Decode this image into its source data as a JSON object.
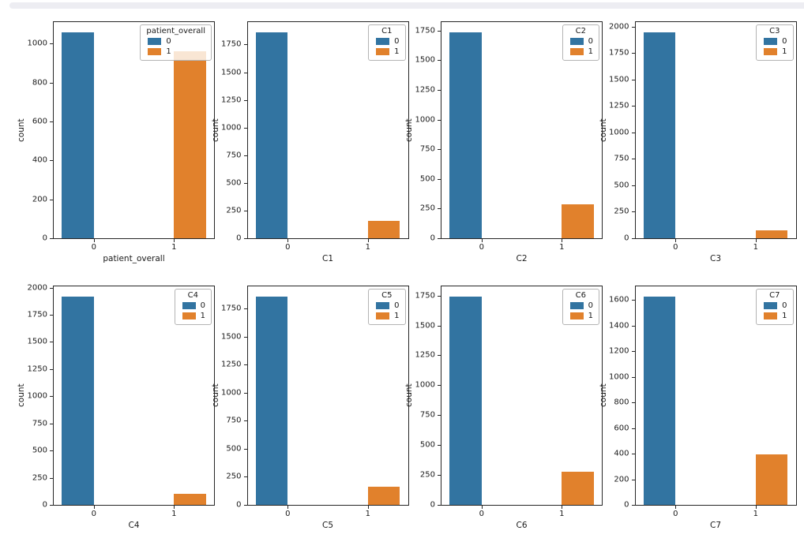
{
  "figure": {
    "kind": "notebook-plot-output",
    "rows": 2,
    "cols": 4,
    "background": "#ffffff"
  },
  "top_divider": {
    "color": "#ededf2"
  },
  "colors": {
    "bar_0": "#3274a1",
    "bar_1": "#e1812c",
    "spine": "#262626",
    "legend_border": "#b4b4b4",
    "text": "#1a1a1a"
  },
  "chart_data": [
    {
      "type": "bar",
      "title": "",
      "xlabel": "patient_overall",
      "ylabel": "count",
      "legend_title": "patient_overall",
      "legend_position": "upper right",
      "grid": false,
      "categories": [
        "0",
        "1"
      ],
      "series_labels": [
        "0",
        "1"
      ],
      "values": [
        1058,
        961
      ],
      "yticks": [
        0,
        200,
        400,
        600,
        800,
        1000
      ],
      "ylim": [
        0,
        1111
      ]
    },
    {
      "type": "bar",
      "title": "",
      "xlabel": "C1",
      "ylabel": "count",
      "legend_title": "C1",
      "legend_position": "upper right",
      "grid": false,
      "categories": [
        "0",
        "1"
      ],
      "series_labels": [
        "0",
        "1"
      ],
      "values": [
        1860,
        155
      ],
      "yticks": [
        0,
        250,
        500,
        750,
        1000,
        1250,
        1500,
        1750
      ],
      "ylim": [
        0,
        1953
      ]
    },
    {
      "type": "bar",
      "title": "",
      "xlabel": "C2",
      "ylabel": "count",
      "legend_title": "C2",
      "legend_position": "upper right",
      "grid": false,
      "categories": [
        "0",
        "1"
      ],
      "series_labels": [
        "0",
        "1"
      ],
      "values": [
        1735,
        285
      ],
      "yticks": [
        0,
        250,
        500,
        750,
        1000,
        1250,
        1500,
        1750
      ],
      "ylim": [
        0,
        1822
      ]
    },
    {
      "type": "bar",
      "title": "",
      "xlabel": "C3",
      "ylabel": "count",
      "legend_title": "C3",
      "legend_position": "upper right",
      "grid": false,
      "categories": [
        "0",
        "1"
      ],
      "series_labels": [
        "0",
        "1"
      ],
      "values": [
        1945,
        75
      ],
      "yticks": [
        0,
        250,
        500,
        750,
        1000,
        1250,
        1500,
        1750,
        2000
      ],
      "ylim": [
        0,
        2042
      ]
    },
    {
      "type": "bar",
      "title": "",
      "xlabel": "C4",
      "ylabel": "count",
      "legend_title": "C4",
      "legend_position": "upper right",
      "grid": false,
      "categories": [
        "0",
        "1"
      ],
      "series_labels": [
        "0",
        "1"
      ],
      "values": [
        1915,
        105
      ],
      "yticks": [
        0,
        250,
        500,
        750,
        1000,
        1250,
        1500,
        1750,
        2000
      ],
      "ylim": [
        0,
        2011
      ]
    },
    {
      "type": "bar",
      "title": "",
      "xlabel": "C5",
      "ylabel": "count",
      "legend_title": "C5",
      "legend_position": "upper right",
      "grid": false,
      "categories": [
        "0",
        "1"
      ],
      "series_labels": [
        "0",
        "1"
      ],
      "values": [
        1855,
        165
      ],
      "yticks": [
        0,
        250,
        500,
        750,
        1000,
        1250,
        1500,
        1750
      ],
      "ylim": [
        0,
        1948
      ]
    },
    {
      "type": "bar",
      "title": "",
      "xlabel": "C6",
      "ylabel": "count",
      "legend_title": "C6",
      "legend_position": "upper right",
      "grid": false,
      "categories": [
        "0",
        "1"
      ],
      "series_labels": [
        "0",
        "1"
      ],
      "values": [
        1740,
        280
      ],
      "yticks": [
        0,
        250,
        500,
        750,
        1000,
        1250,
        1500,
        1750
      ],
      "ylim": [
        0,
        1827
      ]
    },
    {
      "type": "bar",
      "title": "",
      "xlabel": "C7",
      "ylabel": "count",
      "legend_title": "C7",
      "legend_position": "upper right",
      "grid": false,
      "categories": [
        "0",
        "1"
      ],
      "series_labels": [
        "0",
        "1"
      ],
      "values": [
        1625,
        395
      ],
      "yticks": [
        0,
        200,
        400,
        600,
        800,
        1000,
        1200,
        1400,
        1600
      ],
      "ylim": [
        0,
        1706
      ]
    }
  ]
}
